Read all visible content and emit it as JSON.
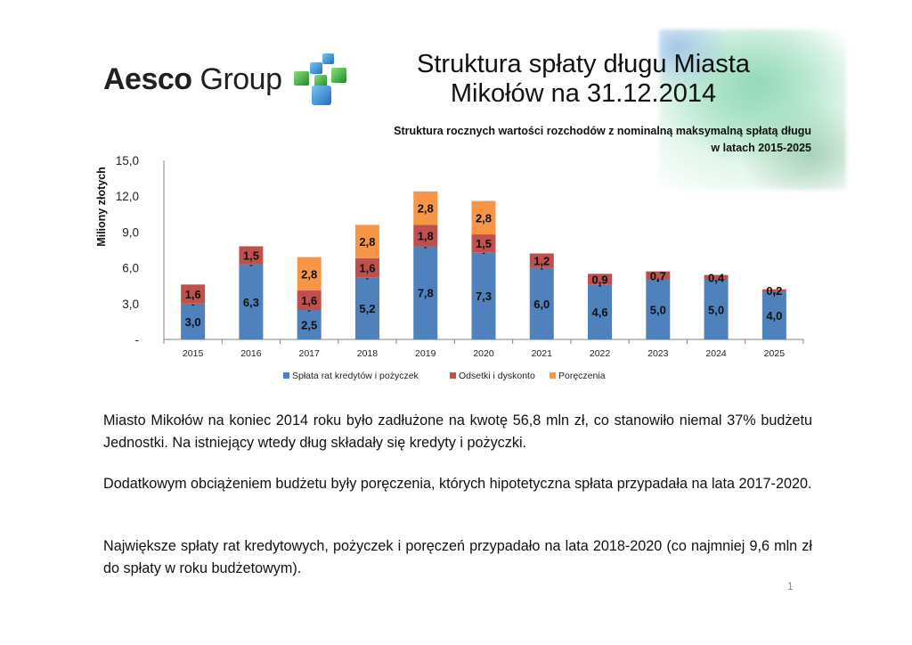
{
  "logo": {
    "brand_bold": "Aesco",
    "brand_regular": " Group"
  },
  "title_line1": "Struktura spłaty długu Miasta",
  "title_line2": "Mikołów na 31.12.2014",
  "chart_data": {
    "type": "bar",
    "stacked": true,
    "title": "Struktura rocznych wartości rozchodów z nominalną maksymalną spłatą długu w latach 2015-2025",
    "title_line1": "Struktura rocznych wartości rozchodów z nominalną maksymalną spłatą długu",
    "title_line2": "w latach 2015-2025",
    "xlabel": "",
    "ylabel": "Miliony złotych",
    "ylim": [
      0,
      15
    ],
    "yticks": [
      0,
      3,
      6,
      9,
      12,
      15
    ],
    "ytick_labels": [
      "-",
      "3,0",
      "6,0",
      "9,0",
      "12,0",
      "15,0"
    ],
    "grid": false,
    "legend_position": "bottom",
    "categories": [
      "2015",
      "2016",
      "2017",
      "2018",
      "2019",
      "2020",
      "2021",
      "2022",
      "2023",
      "2024",
      "2025"
    ],
    "series": [
      {
        "name": "Spłata rat kredytów i pożyczek",
        "color": "#4f81bd",
        "values": [
          3.0,
          6.3,
          2.5,
          5.2,
          7.8,
          7.3,
          6.0,
          4.6,
          5.0,
          5.0,
          4.0
        ],
        "labels": [
          "3,0",
          "6,3",
          "2,5",
          "5,2",
          "7,8",
          "7,3",
          "6,0",
          "4,6",
          "5,0",
          "5,0",
          "4,0"
        ]
      },
      {
        "name": "Odsetki i dyskonto",
        "color": "#c0504d",
        "values": [
          1.6,
          1.5,
          1.6,
          1.6,
          1.8,
          1.5,
          1.2,
          0.9,
          0.7,
          0.4,
          0.2
        ],
        "labels": [
          "1,6",
          "1,5",
          "1,6",
          "1,6",
          "1,8",
          "1,5",
          "1,2",
          "0,9",
          "0,7",
          "0,4",
          "0,2"
        ]
      },
      {
        "name": "Poręczenia",
        "color": "#f79646",
        "values": [
          0,
          0,
          2.8,
          2.8,
          2.8,
          2.8,
          0,
          0,
          0,
          0,
          0
        ],
        "labels": [
          "-",
          "-",
          "2,8",
          "2,8",
          "2,8",
          "2,8",
          "-",
          "-",
          "-",
          "-",
          "-"
        ]
      }
    ]
  },
  "paragraphs": [
    "Miasto Mikołów na koniec 2014 roku było zadłużone na kwotę 56,8 mln zł, co stanowiło niemal 37% budżetu Jednostki. Na istniejący wtedy dług składały się kredyty i pożyczki.",
    "Dodatkowym obciążeniem budżetu były poręczenia, których hipotetyczna spłata przypadała na lata 2017-2020.",
    "Największe spłaty rat kredytowych, pożyczek i poręczeń przypadało na lata 2018-2020 (co najmniej 9,6 mln zł do spłaty w roku budżetowym)."
  ],
  "page_number": "1"
}
